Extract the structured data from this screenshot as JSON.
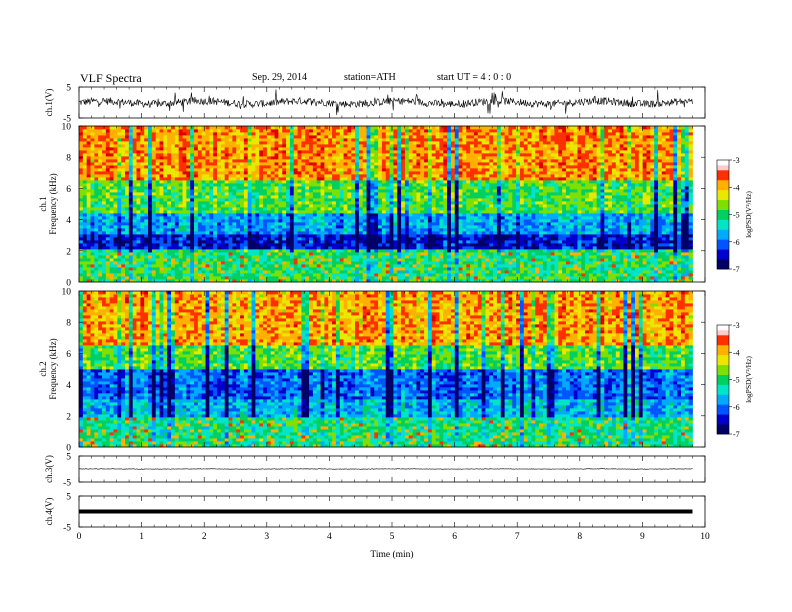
{
  "header": {
    "title": "VLF  Spectra",
    "date": "Sep. 29, 2014",
    "station": "station=ATH",
    "start": "start  UT  =   4  : 0  : 0"
  },
  "chart_data": [
    {
      "type": "line",
      "panel": "ch1-waveform",
      "ylabel": "ch.1(V)",
      "ylim": [
        -5,
        5
      ],
      "yticks": [
        "5",
        "-5"
      ],
      "xlim": [
        0,
        10
      ],
      "x_end": 9.8,
      "baseline": 0,
      "noise_amplitude": 1.2,
      "spike_amplitude": 3.5
    },
    {
      "type": "heatmap",
      "panel": "ch1-spectrogram",
      "ylabel": "ch.1\nFrequency (kHz)",
      "ylabel_lines": [
        "ch.1",
        "Frequency (kHz)"
      ],
      "ylim": [
        0,
        10
      ],
      "yticks": [
        "0",
        "2",
        "4",
        "6",
        "8",
        "10"
      ],
      "xlim": [
        0,
        10
      ],
      "x_end": 9.8,
      "colorbar": {
        "label": "logPSD(V²/Hz)",
        "range": [
          -7,
          -3
        ],
        "ticks": [
          "-3",
          "-4",
          "-5",
          "-6",
          "-7"
        ]
      },
      "bands": [
        {
          "from_khz": 0.0,
          "to_khz": 2.2,
          "logpsd": -5.0
        },
        {
          "from_khz": 2.2,
          "to_khz": 3.0,
          "logpsd": -6.4
        },
        {
          "from_khz": 3.0,
          "to_khz": 4.5,
          "logpsd": -5.7
        },
        {
          "from_khz": 4.5,
          "to_khz": 6.5,
          "logpsd": -4.8
        },
        {
          "from_khz": 6.5,
          "to_khz": 10.0,
          "logpsd": -3.8
        }
      ]
    },
    {
      "type": "heatmap",
      "panel": "ch2-spectrogram",
      "ylabel": "ch.2\nFrequency (kHz)",
      "ylabel_lines": [
        "ch.2",
        "Frequency (kHz)"
      ],
      "ylim": [
        0,
        10
      ],
      "yticks": [
        "0",
        "2",
        "4",
        "6",
        "8",
        "10"
      ],
      "xlim": [
        0,
        10
      ],
      "x_end": 9.8,
      "colorbar": {
        "label": "logPSD(V²/Hz)",
        "range": [
          -7,
          -3
        ],
        "ticks": [
          "-3",
          "-4",
          "-5",
          "-6",
          "-7"
        ]
      },
      "bands": [
        {
          "from_khz": 0.0,
          "to_khz": 2.0,
          "logpsd": -5.1
        },
        {
          "from_khz": 2.0,
          "to_khz": 3.0,
          "logpsd": -5.6
        },
        {
          "from_khz": 3.0,
          "to_khz": 5.0,
          "logpsd": -6.0
        },
        {
          "from_khz": 5.0,
          "to_khz": 6.5,
          "logpsd": -4.8
        },
        {
          "from_khz": 6.5,
          "to_khz": 10.0,
          "logpsd": -3.9
        }
      ]
    },
    {
      "type": "line",
      "panel": "ch3-waveform",
      "ylabel": "ch.3(V)",
      "ylim": [
        -5,
        5
      ],
      "yticks": [
        "5",
        "-5"
      ],
      "xlim": [
        0,
        10
      ],
      "x_end": 9.8,
      "baseline": 0,
      "noise_amplitude": 0.1,
      "spike_amplitude": 0
    },
    {
      "type": "line",
      "panel": "ch4-waveform",
      "ylabel": "ch.4(V)",
      "ylim": [
        -5,
        5
      ],
      "yticks": [
        "5",
        "-5"
      ],
      "xlim": [
        0,
        10
      ],
      "x_end": 9.8,
      "baseline": 0,
      "noise_amplitude": 0,
      "spike_amplitude": 0,
      "line_weight": "thick"
    }
  ],
  "xaxis": {
    "label": "Time  (min)",
    "ticks": [
      "0",
      "1",
      "2",
      "3",
      "4",
      "5",
      "6",
      "7",
      "8",
      "9",
      "10"
    ]
  },
  "colormap": [
    "#000066",
    "#0000cc",
    "#0055ff",
    "#00aaff",
    "#00e5c8",
    "#00d060",
    "#7fe000",
    "#e8e800",
    "#ffb000",
    "#ff3000",
    "#e00000",
    "#ffffff"
  ]
}
